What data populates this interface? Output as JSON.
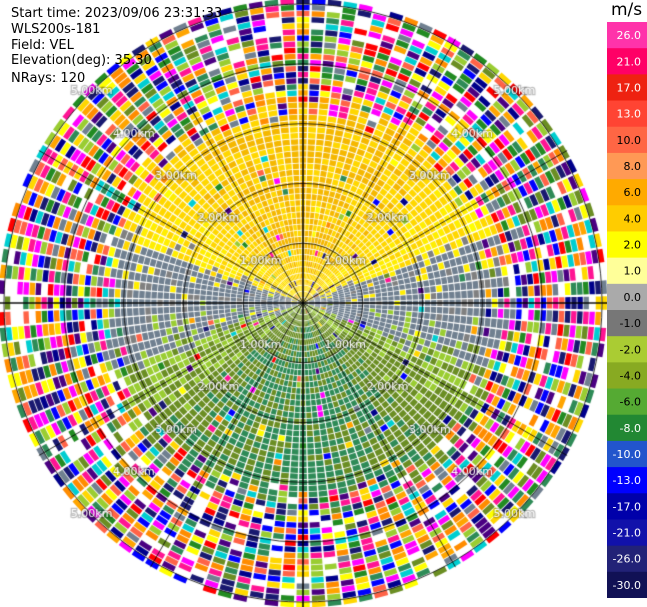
{
  "header": {
    "start_time": "Start time: 2023/09/06 23:31:33",
    "instrument": "WLS200s-181",
    "field": "Field: VEL",
    "elevation": "Elevation(deg): 35.30",
    "nrays": "NRays: 120"
  },
  "colorbar": {
    "unit": "m/s",
    "ticks": [
      "26.0",
      "21.0",
      "17.0",
      "13.0",
      "10.0",
      "8.0",
      "6.0",
      "4.0",
      "2.0",
      "1.0",
      "0.0",
      "-1.0",
      "-2.0",
      "-4.0",
      "-6.0",
      "-8.0",
      "-10.0",
      "-13.0",
      "-17.0",
      "-21.0",
      "-26.0",
      "-30.0"
    ],
    "colors": [
      "#ff33aa",
      "#ff0066",
      "#ee2211",
      "#ff4433",
      "#ff6644",
      "#ff9955",
      "#ffaa00",
      "#ffcc00",
      "#ffff00",
      "#ffff99",
      "#aaaaaa",
      "#777777",
      "#aacc33",
      "#88aa22",
      "#55aa33",
      "#228833",
      "#2255cc",
      "#0000ff",
      "#0000aa",
      "#1111aa",
      "#222277",
      "#111155"
    ],
    "value_fill_colors": [
      "#ff1493",
      "#ff0000",
      "#ff6347",
      "#ff8c00",
      "#ffa500",
      "#ffd700",
      "#ffff00",
      "#708090",
      "#9acd32",
      "#6b8e23",
      "#2e8b57",
      "#228b22",
      "#0000ff",
      "#00008b",
      "#191970",
      "#4b0082",
      "#ff00ff",
      "#00ced1"
    ]
  },
  "chart_data": {
    "type": "ppi",
    "field": "VEL",
    "units": "m/s",
    "nrays": 120,
    "elevation_deg": 35.3,
    "ring_labels": [
      "1.00km",
      "2.00km",
      "3.00km",
      "4.00km",
      "5.00km"
    ],
    "ring_ranges_km": [
      1,
      2,
      3,
      4,
      5
    ],
    "max_range_km": 5.1,
    "velocity_pattern": {
      "north_sector": "positive 2-8 m/s (yellow/orange)",
      "south_sector": "negative -2 to -8 m/s (green)",
      "east_west_near_zero": "0 to -1 m/s (grey)",
      "outer_ranges_beyond_3km": "noisy, full color range"
    },
    "colorbar_range": [
      -30,
      26
    ]
  }
}
